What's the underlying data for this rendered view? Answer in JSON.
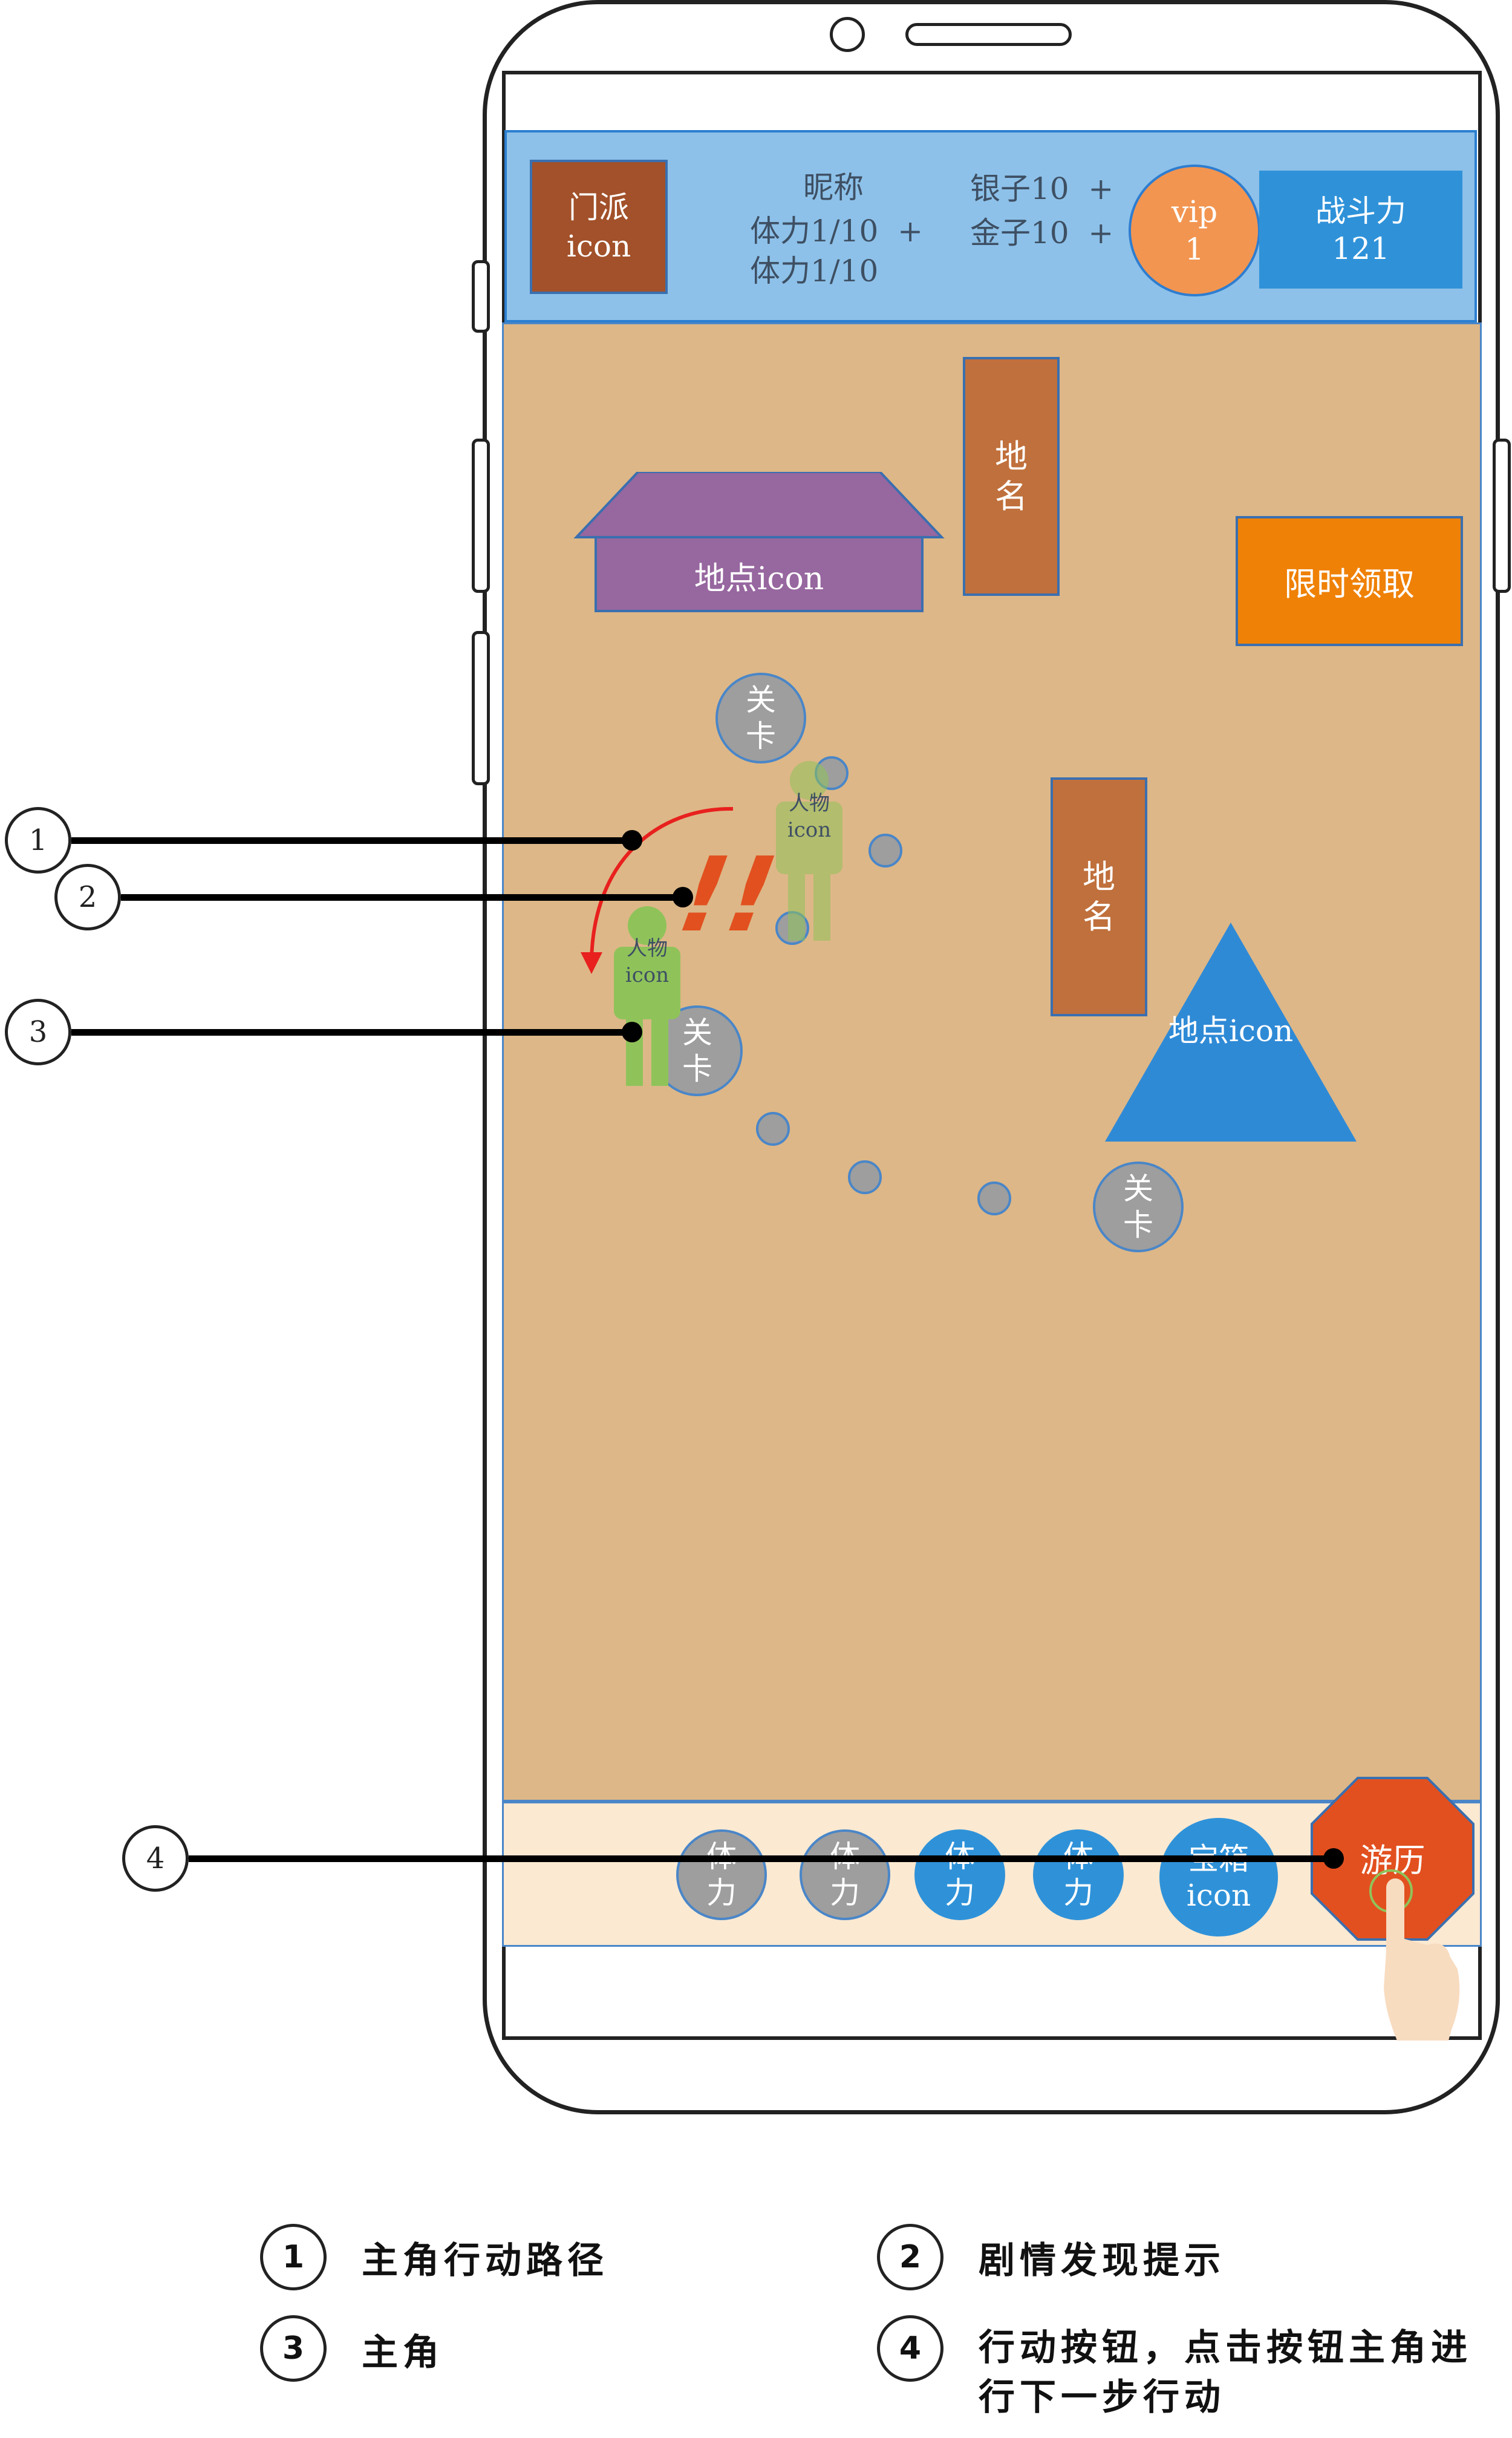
{
  "top_bar": {
    "sect_label": "门派\nicon",
    "nickname": "昵称",
    "stamina_line1": "体力1/10  +",
    "stamina_line2": "体力1/10",
    "silver": "银子10  +",
    "gold": "金子10  +",
    "vip_label": "vip\n1",
    "combat_label": "战斗力\n121"
  },
  "map": {
    "location_house_label": "地点icon",
    "place_name_1": "地\n名",
    "place_name_2": "地\n名",
    "timed_reward_label": "限时领取",
    "location_triangle_label": "地点icon",
    "stage_labels": [
      "关\n卡",
      "关\n卡",
      "关\n卡"
    ],
    "npc_label": "人物\nicon",
    "hero_label": "人物\nicon",
    "alert_glyph": "!!"
  },
  "bottom_bar": {
    "skills": [
      {
        "label": "体\n力",
        "state": "inactive"
      },
      {
        "label": "体\n力",
        "state": "inactive"
      },
      {
        "label": "体\n力",
        "state": "active"
      },
      {
        "label": "体\n力",
        "state": "active"
      }
    ],
    "chest_label": "宝箱\nicon",
    "travel_label": "游历"
  },
  "callouts": [
    "1",
    "2",
    "3",
    "4"
  ],
  "legend": [
    {
      "num": "1",
      "text": "主角行动路径"
    },
    {
      "num": "2",
      "text": "剧情发现提示"
    },
    {
      "num": "3",
      "text": "主角"
    },
    {
      "num": "4",
      "text": "行动按钮，点击按钮主角进\n行下一步行动"
    }
  ],
  "colors": {
    "top_bar_bg": "#8dc1e9",
    "map_bg": "#ddb787",
    "bottom_bar_bg": "#fbe9d1",
    "skill_inactive": "#9e9e9e",
    "skill_active": "#2f92d9",
    "travel_button": "#e2501f",
    "character_green": "#8fc35a"
  }
}
